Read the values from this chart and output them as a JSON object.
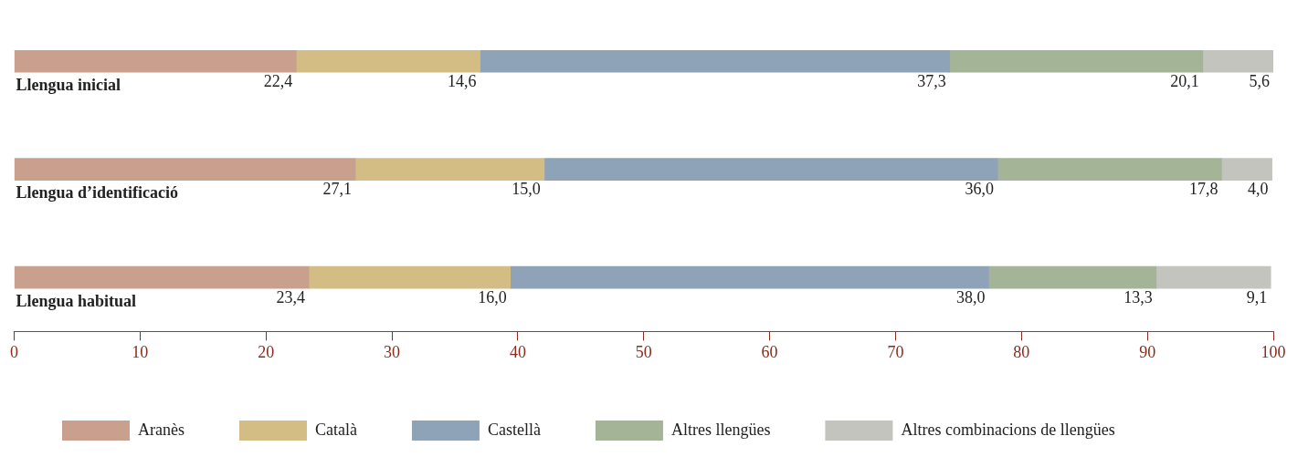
{
  "chart_data": {
    "type": "bar",
    "orientation": "horizontal",
    "stacked": true,
    "categories": [
      "Llengua inicial",
      "Llengua d’identificació",
      "Llengua habitual"
    ],
    "series": [
      {
        "name": "Aranès",
        "color": "#c9a08e",
        "values": [
          22.4,
          27.1,
          23.4
        ],
        "value_labels": [
          "22,4",
          "27,1",
          "23,4"
        ]
      },
      {
        "name": "Català",
        "color": "#d4bd85",
        "values": [
          14.6,
          15.0,
          16.0
        ],
        "value_labels": [
          "14,6",
          "15,0",
          "16,0"
        ]
      },
      {
        "name": "Castellà",
        "color": "#8fa3b8",
        "values": [
          37.3,
          36.0,
          38.0
        ],
        "value_labels": [
          "37,3",
          "36,0",
          "38,0"
        ]
      },
      {
        "name": "Altres llengües",
        "color": "#a3b596",
        "values": [
          20.1,
          17.8,
          13.3
        ],
        "value_labels": [
          "20,1",
          "17,8",
          "13,3"
        ]
      },
      {
        "name": "Altres combinacions de llengües",
        "color": "#c4c4bf",
        "values": [
          5.6,
          4.0,
          9.1
        ],
        "value_labels": [
          "5,6",
          "4,0",
          "9,1"
        ]
      }
    ],
    "xlim": [
      0,
      100
    ],
    "xticks": [
      0,
      10,
      20,
      30,
      40,
      50,
      60,
      70,
      80,
      90,
      100
    ],
    "legend": "bottom",
    "grid": false
  }
}
